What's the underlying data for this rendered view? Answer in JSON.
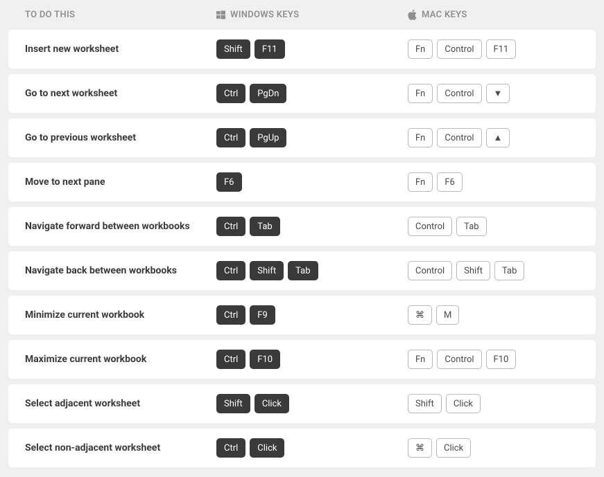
{
  "headers": {
    "action": "TO DO THIS",
    "windows": "WINDOWS KEYS",
    "mac": "MAC KEYS"
  },
  "colors": {
    "page_bg": "#f0f0f0",
    "row_bg": "#ffffff",
    "header_text": "#8f8f8f",
    "action_text": "#3b3b3b",
    "key_dark_bg": "#3a3a3a",
    "key_dark_text": "#ffffff",
    "key_light_bg": "#ffffff",
    "key_light_text": "#4a4a4a",
    "key_light_border": "#b8b8b8"
  },
  "rows": [
    {
      "action": "Insert new worksheet",
      "win": [
        "Shift",
        "F11"
      ],
      "mac": [
        "Fn",
        "Control",
        "F11"
      ]
    },
    {
      "action": "Go to next worksheet",
      "win": [
        "Ctrl",
        "PgDn"
      ],
      "mac": [
        "Fn",
        "Control",
        "▼"
      ]
    },
    {
      "action": "Go to previous worksheet",
      "win": [
        "Ctrl",
        "PgUp"
      ],
      "mac": [
        "Fn",
        "Control",
        "▲"
      ]
    },
    {
      "action": "Move to next pane",
      "win": [
        "F6"
      ],
      "mac": [
        "Fn",
        "F6"
      ]
    },
    {
      "action": "Navigate forward between workbooks",
      "win": [
        "Ctrl",
        "Tab"
      ],
      "mac": [
        "Control",
        "Tab"
      ]
    },
    {
      "action": "Navigate back between workbooks",
      "win": [
        "Ctrl",
        "Shift",
        "Tab"
      ],
      "mac": [
        "Control",
        "Shift",
        "Tab"
      ]
    },
    {
      "action": "Minimize current workbook",
      "win": [
        "Ctrl",
        "F9"
      ],
      "mac": [
        "⌘",
        "M"
      ]
    },
    {
      "action": "Maximize current workbook",
      "win": [
        "Ctrl",
        "F10"
      ],
      "mac": [
        "Fn",
        "Control",
        "F10"
      ]
    },
    {
      "action": "Select adjacent worksheet",
      "win": [
        "Shift",
        "Click"
      ],
      "mac": [
        "Shift",
        "Click"
      ]
    },
    {
      "action": "Select non-adjacent worksheet",
      "win": [
        "Ctrl",
        "Click"
      ],
      "mac": [
        "⌘",
        "Click"
      ]
    }
  ]
}
